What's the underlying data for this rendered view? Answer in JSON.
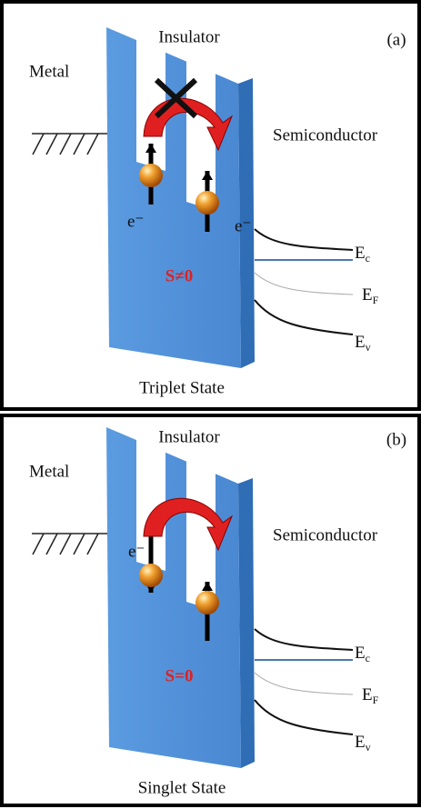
{
  "panels": [
    {
      "tag": "(a)",
      "insulator": "Insulator",
      "metal": "Metal",
      "semiconductor": "Semiconductor",
      "electrons": [
        "e⁻",
        "e⁻"
      ],
      "spin": "S≠0",
      "levels": [
        {
          "symbol": "E",
          "subscript": "c"
        },
        {
          "symbol": "E",
          "subscript": "F"
        },
        {
          "symbol": "E",
          "subscript": "v"
        }
      ],
      "state": "Triplet State"
    },
    {
      "tag": "(b)",
      "insulator": "Insulator",
      "metal": "Metal",
      "semiconductor": "Semiconductor",
      "electrons": [
        "e⁻"
      ],
      "spin": "S=0",
      "levels": [
        {
          "symbol": "E",
          "subscript": "c"
        },
        {
          "symbol": "E",
          "subscript": "F"
        },
        {
          "symbol": "E",
          "subscript": "v"
        }
      ],
      "state": "Singlet State"
    }
  ]
}
